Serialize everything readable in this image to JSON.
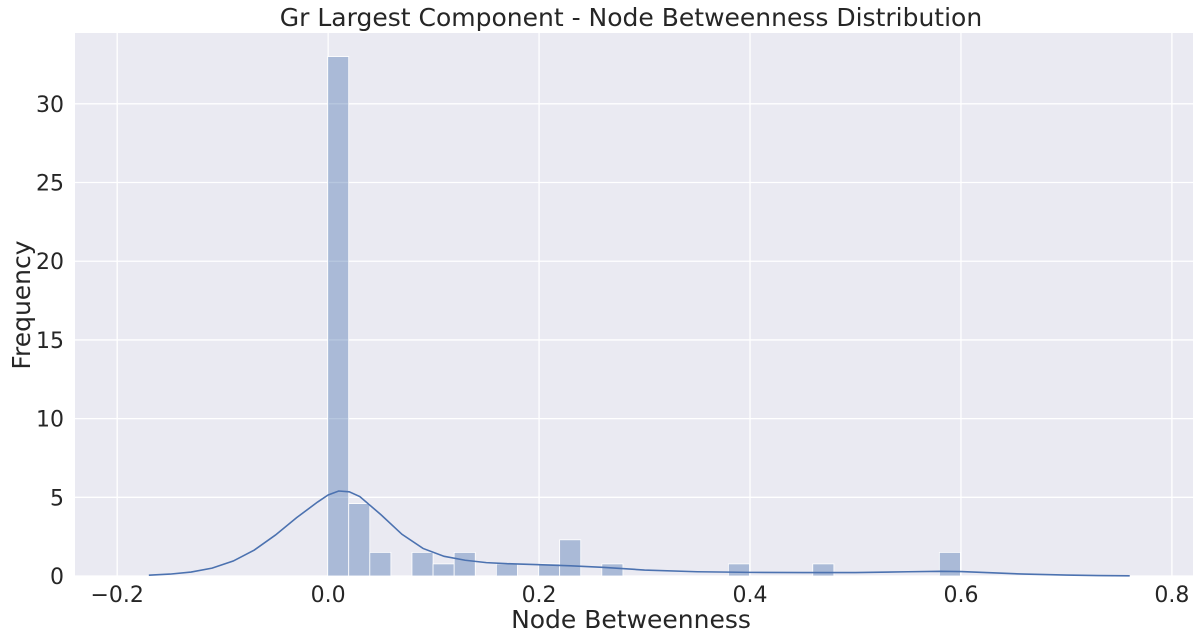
{
  "chart_data": {
    "type": "bar",
    "subtype": "histogram-with-kde",
    "title": "Gr Largest Component - Node Betweenness Distribution",
    "xlabel": "Node Betweenness",
    "ylabel": "Frequency",
    "xlim": [
      -0.24,
      0.82
    ],
    "ylim": [
      0,
      34.5
    ],
    "xticks": [
      -0.2,
      0.0,
      0.2,
      0.4,
      0.6,
      0.8
    ],
    "xtick_labels": [
      "−0.2",
      "0.0",
      "0.2",
      "0.4",
      "0.6",
      "0.8"
    ],
    "yticks": [
      0,
      5,
      10,
      15,
      20,
      25,
      30
    ],
    "ytick_labels": [
      "0",
      "5",
      "10",
      "15",
      "20",
      "25",
      "30"
    ],
    "grid": true,
    "background": "#eaeaf2",
    "bar_color": "#4c72b0",
    "bins": [
      {
        "x0": -0.0005,
        "x1": 0.0195,
        "value": 33.0
      },
      {
        "x0": 0.0195,
        "x1": 0.0395,
        "value": 4.6
      },
      {
        "x0": 0.0395,
        "x1": 0.0595,
        "value": 1.5
      },
      {
        "x0": 0.0795,
        "x1": 0.0995,
        "value": 1.5
      },
      {
        "x0": 0.0995,
        "x1": 0.1195,
        "value": 0.77
      },
      {
        "x0": 0.1195,
        "x1": 0.1395,
        "value": 1.5
      },
      {
        "x0": 0.1595,
        "x1": 0.1795,
        "value": 0.77
      },
      {
        "x0": 0.1995,
        "x1": 0.2195,
        "value": 0.77
      },
      {
        "x0": 0.2195,
        "x1": 0.2395,
        "value": 2.3
      },
      {
        "x0": 0.2595,
        "x1": 0.2795,
        "value": 0.77
      },
      {
        "x0": 0.3795,
        "x1": 0.3995,
        "value": 0.77
      },
      {
        "x0": 0.4595,
        "x1": 0.4795,
        "value": 0.77
      },
      {
        "x0": 0.5795,
        "x1": 0.5995,
        "value": 1.5
      }
    ],
    "kde": {
      "x": [
        -0.17,
        -0.15,
        -0.13,
        -0.11,
        -0.09,
        -0.07,
        -0.05,
        -0.03,
        -0.01,
        0.0,
        0.01,
        0.02,
        0.03,
        0.05,
        0.07,
        0.09,
        0.11,
        0.13,
        0.15,
        0.17,
        0.2,
        0.23,
        0.26,
        0.3,
        0.35,
        0.4,
        0.45,
        0.5,
        0.55,
        0.58,
        0.6,
        0.63,
        0.66,
        0.7,
        0.73,
        0.76
      ],
      "y": [
        0.05,
        0.12,
        0.25,
        0.5,
        0.95,
        1.65,
        2.6,
        3.7,
        4.7,
        5.15,
        5.4,
        5.35,
        5.05,
        3.9,
        2.65,
        1.75,
        1.25,
        1.0,
        0.85,
        0.78,
        0.72,
        0.65,
        0.55,
        0.38,
        0.27,
        0.23,
        0.22,
        0.22,
        0.27,
        0.3,
        0.28,
        0.2,
        0.12,
        0.06,
        0.03,
        0.01
      ]
    }
  }
}
